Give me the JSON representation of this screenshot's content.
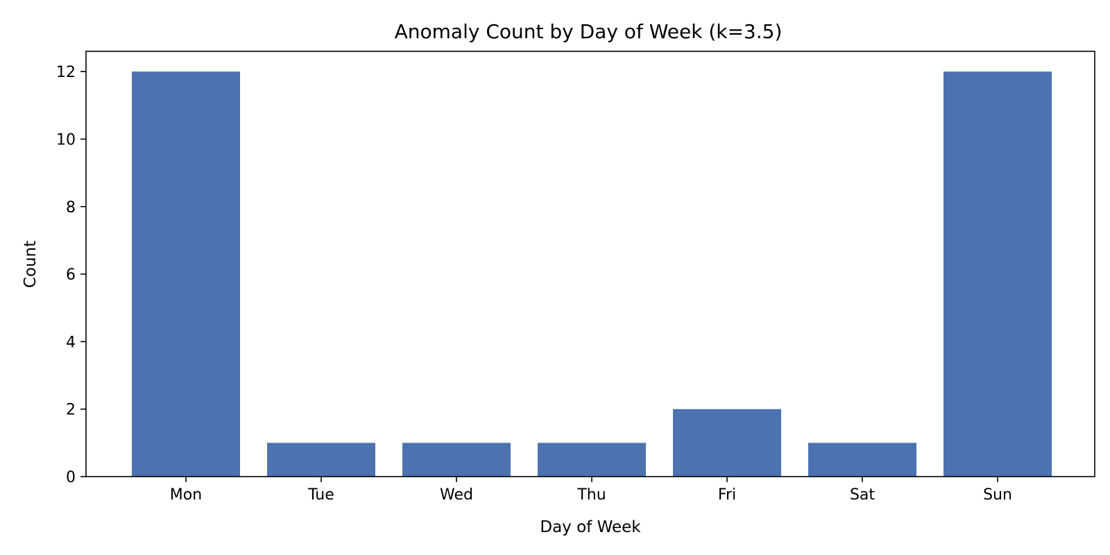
{
  "chart_data": {
    "type": "bar",
    "title": "Anomaly Count by Day of Week (k=3.5)",
    "xlabel": "Day of Week",
    "ylabel": "Count",
    "categories": [
      "Mon",
      "Tue",
      "Wed",
      "Thu",
      "Fri",
      "Sat",
      "Sun"
    ],
    "values": [
      12,
      1,
      1,
      1,
      2,
      1,
      12
    ],
    "ylim": [
      0,
      12.6
    ],
    "yticks": [
      0,
      2,
      4,
      6,
      8,
      10,
      12
    ],
    "grid": false,
    "bar_color": "#4c72b0"
  }
}
